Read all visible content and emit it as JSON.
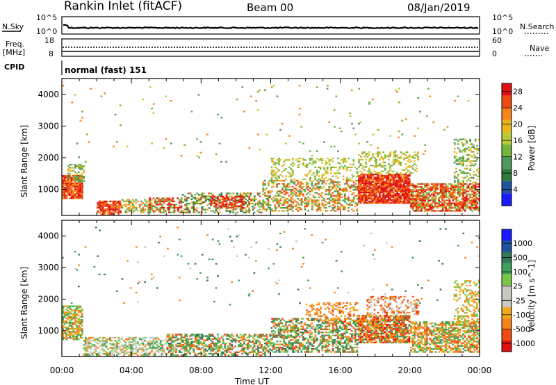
{
  "header": {
    "station": "Rankin Inlet (fitACF)",
    "beam": "Beam 00",
    "date": "08/Jan/2019"
  },
  "nsky_panel": {
    "left_label": "N.Sky",
    "right_label": "N.Search",
    "left_ticks": [
      "10^5",
      "10^0"
    ],
    "right_ticks": [
      "10^5",
      "10^0"
    ]
  },
  "freq_panel": {
    "left_label_1": "Freq.",
    "left_label_2": "[MHz]",
    "right_label": "Nave",
    "left_ticks": [
      "18",
      "8"
    ],
    "right_ticks": [
      "60",
      "0"
    ]
  },
  "cpid": {
    "label": "CPID",
    "mode": "normal (fast) 151"
  },
  "colors": {
    "power": [
      "#1a1aff",
      "#2050a0",
      "#2f7a3a",
      "#4e9a5a",
      "#72b43c",
      "#b8c93a",
      "#e8b31c",
      "#f5851a",
      "#ee4a14",
      "#e01010"
    ],
    "velocity": [
      "#e01010",
      "#ee4a14",
      "#f5851a",
      "#f0a818",
      "#c8c8c0",
      "#c8c8c0",
      "#78c848",
      "#3fa05a",
      "#2f7a5a",
      "#2050a0",
      "#1a1aff"
    ]
  },
  "chart_data": [
    {
      "type": "heatmap",
      "title": "Power",
      "xlabel": "Time UT",
      "ylabel": "Slant Range [km]",
      "colorbar_label": "Power [dB]",
      "x_ticks": [
        "00:00",
        "04:00",
        "08:00",
        "12:00",
        "16:00",
        "20:00",
        "00:00"
      ],
      "y_ticks": [
        1000,
        2000,
        3000,
        4000
      ],
      "ylim": [
        180,
        4500
      ],
      "xlim_hours": [
        0,
        24
      ],
      "colorbar_ticks": [
        4,
        8,
        12,
        16,
        20,
        24,
        28
      ],
      "colorbar_range": [
        0,
        30
      ]
    },
    {
      "type": "heatmap",
      "title": "Velocity",
      "xlabel": "Time UT",
      "ylabel": "Slant Range [km]",
      "colorbar_label": "Velocity [m s^-1]",
      "x_ticks": [
        "00:00",
        "04:00",
        "08:00",
        "12:00",
        "16:00",
        "20:00",
        "00:00"
      ],
      "y_ticks": [
        1000,
        2000,
        3000,
        4000
      ],
      "ylim": [
        180,
        4500
      ],
      "xlim_hours": [
        0,
        24
      ],
      "colorbar_ticks": [
        "1000",
        "500",
        "100",
        "25",
        "-25",
        "-100",
        "-500",
        "-1000"
      ]
    }
  ],
  "footer": {
    "x_title": "Time UT",
    "x_ticks": [
      "00:00",
      "04:00",
      "08:00",
      "12:00",
      "16:00",
      "20:00",
      "00:00"
    ]
  }
}
